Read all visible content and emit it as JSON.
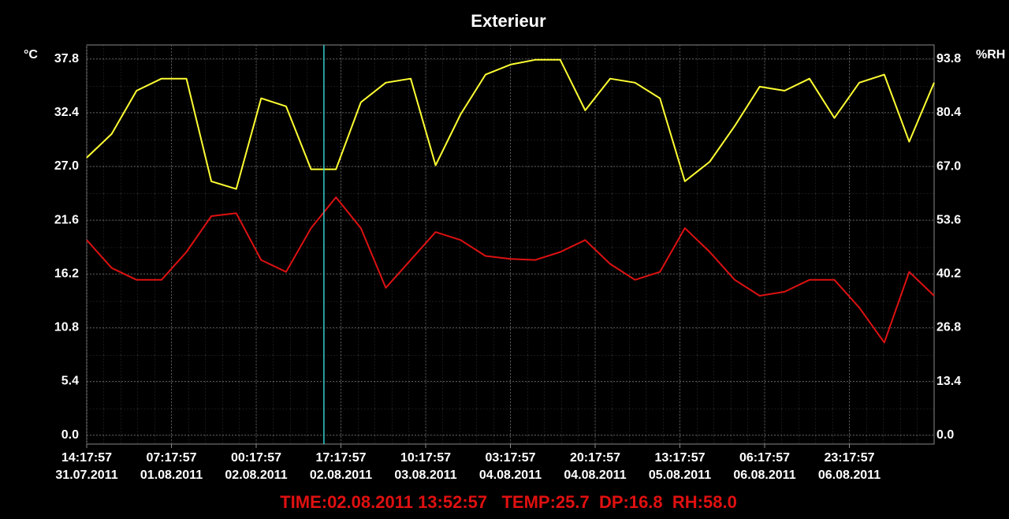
{
  "chart_data": {
    "type": "line",
    "title": "Exterieur",
    "ylabel": "°C",
    "y2label": "%RH",
    "readout": "TIME:02.08.2011 13:52:57   TEMP:25.7  DP:16.8  RH:58.0",
    "cursor_x": "2011-08-02T13:52:57",
    "x": [
      "2011-07-31T14:17:57",
      "2011-07-31T19:17:57",
      "2011-08-01T00:17:57",
      "2011-08-01T05:17:57",
      "2011-08-01T10:17:57",
      "2011-08-01T15:17:57",
      "2011-08-01T20:17:57",
      "2011-08-02T01:17:57",
      "2011-08-02T06:17:57",
      "2011-08-02T11:17:57",
      "2011-08-02T16:17:57",
      "2011-08-02T21:17:57",
      "2011-08-03T02:17:57",
      "2011-08-03T07:17:57",
      "2011-08-03T12:17:57",
      "2011-08-03T17:17:57",
      "2011-08-03T22:17:57",
      "2011-08-04T03:17:57",
      "2011-08-04T08:17:57",
      "2011-08-04T13:17:57",
      "2011-08-04T18:17:57",
      "2011-08-04T23:17:57",
      "2011-08-05T04:17:57",
      "2011-08-05T09:17:57",
      "2011-08-05T14:17:57",
      "2011-08-05T19:17:57",
      "2011-08-06T00:17:57",
      "2011-08-06T05:17:57",
      "2011-08-06T10:17:57",
      "2011-08-06T15:17:57",
      "2011-08-06T20:17:57",
      "2011-08-07T01:17:57",
      "2011-08-07T06:17:57",
      "2011-08-07T11:17:57",
      "2011-08-07T16:17:57"
    ],
    "series": [
      {
        "color": "#ffff33",
        "axis": "y2",
        "values": [
          69.2,
          75.1,
          85.9,
          88.9,
          88.9,
          63.3,
          61.4,
          84.0,
          82.0,
          66.3,
          66.3,
          83.0,
          87.9,
          88.9,
          67.3,
          80.0,
          89.9,
          92.4,
          93.6,
          93.6,
          81.0,
          88.9,
          87.9,
          84.0,
          63.3,
          68.2,
          77.1,
          86.9,
          85.9,
          88.9,
          79.1,
          87.9,
          89.9,
          73.2,
          87.9
        ]
      },
      {
        "color": "#dd1111",
        "values": [
          19.6,
          16.8,
          15.6,
          15.6,
          18.4,
          22.0,
          22.3,
          17.6,
          16.4,
          20.8,
          23.9,
          20.8,
          14.8,
          17.6,
          20.4,
          19.6,
          18.0,
          17.7,
          17.6,
          18.4,
          19.6,
          17.2,
          15.6,
          16.4,
          20.8,
          18.4,
          15.6,
          14.0,
          14.4,
          15.6,
          15.6,
          12.8,
          9.3,
          16.4,
          14.0
        ]
      }
    ],
    "xlim": [
      "2011-07-31T14:17:57",
      "2011-08-07T16:17:57"
    ],
    "xticks": [
      {
        "value": "2011-07-31T14:17:57",
        "label": [
          "14:17:57",
          "31.07.2011"
        ]
      },
      {
        "value": "2011-08-01T07:17:57",
        "label": [
          "07:17:57",
          "01.08.2011"
        ]
      },
      {
        "value": "2011-08-02T00:17:57",
        "label": [
          "00:17:57",
          "02.08.2011"
        ]
      },
      {
        "value": "2011-08-02T17:17:57",
        "label": [
          "17:17:57",
          "02.08.2011"
        ]
      },
      {
        "value": "2011-08-03T10:17:57",
        "label": [
          "10:17:57",
          "03.08.2011"
        ]
      },
      {
        "value": "2011-08-04T03:17:57",
        "label": [
          "03:17:57",
          "04.08.2011"
        ]
      },
      {
        "value": "2011-08-04T20:17:57",
        "label": [
          "20:17:57",
          "04.08.2011"
        ]
      },
      {
        "value": "2011-08-05T13:17:57",
        "label": [
          "13:17:57",
          "05.08.2011"
        ]
      },
      {
        "value": "2011-08-06T06:17:57",
        "label": [
          "06:17:57",
          "06.08.2011"
        ]
      },
      {
        "value": "2011-08-06T23:17:57",
        "label": [
          "23:17:57",
          "06.08.2011"
        ]
      }
    ],
    "ylim": [
      -0.9,
      39.2
    ],
    "yticks": [
      {
        "value": 0,
        "label": "0.0"
      },
      5.4,
      10.8,
      16.2,
      21.6,
      {
        "value": 27,
        "label": "27.0"
      },
      32.4,
      37.8
    ],
    "y2lim": [
      -2.2,
      97.3
    ],
    "y2ticks": [
      {
        "value": 0,
        "label": "0.0"
      },
      13.4,
      26.8,
      40.2,
      53.6,
      {
        "value": 67,
        "label": "67.0"
      },
      80.4,
      93.8
    ],
    "grid": true
  }
}
